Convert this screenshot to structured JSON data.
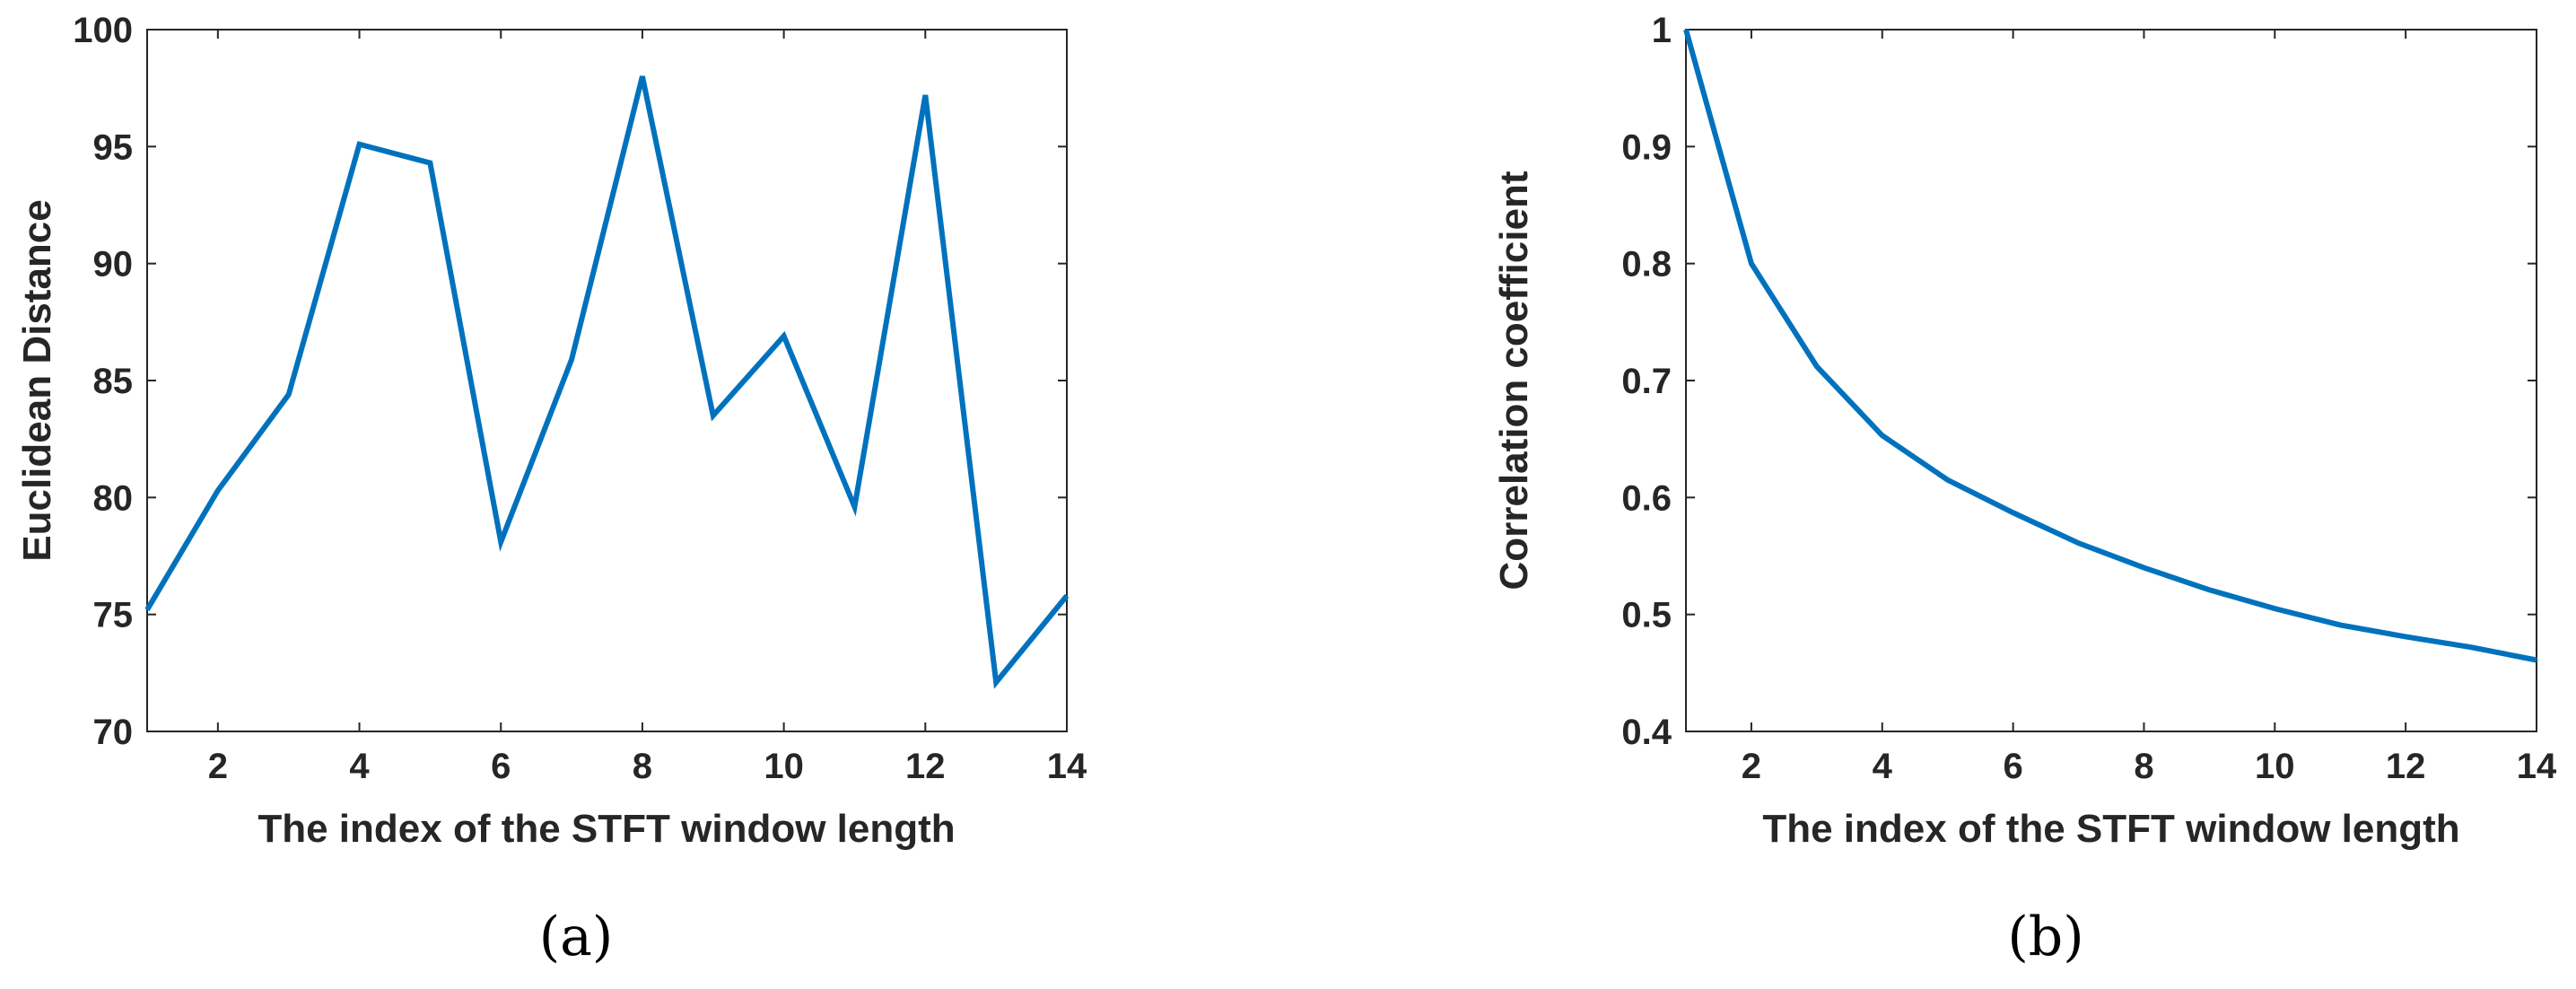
{
  "chart_data": [
    {
      "type": "line",
      "panel_label": "(a)",
      "xlabel": "The index of the STFT window length",
      "ylabel": "Euclidean Distance",
      "xlim": [
        1,
        14
      ],
      "ylim": [
        70,
        100
      ],
      "xticks": [
        2,
        4,
        6,
        8,
        10,
        12,
        14
      ],
      "yticks": [
        70,
        75,
        80,
        85,
        90,
        95,
        100
      ],
      "grid": false,
      "color": "#0072BD",
      "x": [
        1,
        2,
        3,
        4,
        5,
        6,
        7,
        8,
        9,
        10,
        11,
        12,
        13,
        14
      ],
      "values": [
        75.2,
        80.3,
        84.4,
        95.1,
        94.3,
        78.1,
        85.9,
        98.0,
        83.5,
        86.9,
        79.6,
        97.2,
        72.1,
        75.8
      ]
    },
    {
      "type": "line",
      "panel_label": "(b)",
      "xlabel": "The index of the STFT window length",
      "ylabel": "Correlation coefficient",
      "xlim": [
        1,
        14
      ],
      "ylim": [
        0.4,
        1
      ],
      "xticks": [
        2,
        4,
        6,
        8,
        10,
        12,
        14
      ],
      "yticks": [
        0.4,
        0.5,
        0.6,
        0.7,
        0.8,
        0.9,
        1
      ],
      "grid": false,
      "color": "#0072BD",
      "x": [
        1,
        2,
        3,
        4,
        5,
        6,
        7,
        8,
        9,
        10,
        11,
        12,
        13,
        14
      ],
      "values": [
        1.0,
        0.8,
        0.712,
        0.653,
        0.615,
        0.587,
        0.561,
        0.54,
        0.521,
        0.505,
        0.491,
        0.481,
        0.472,
        0.461
      ]
    }
  ]
}
